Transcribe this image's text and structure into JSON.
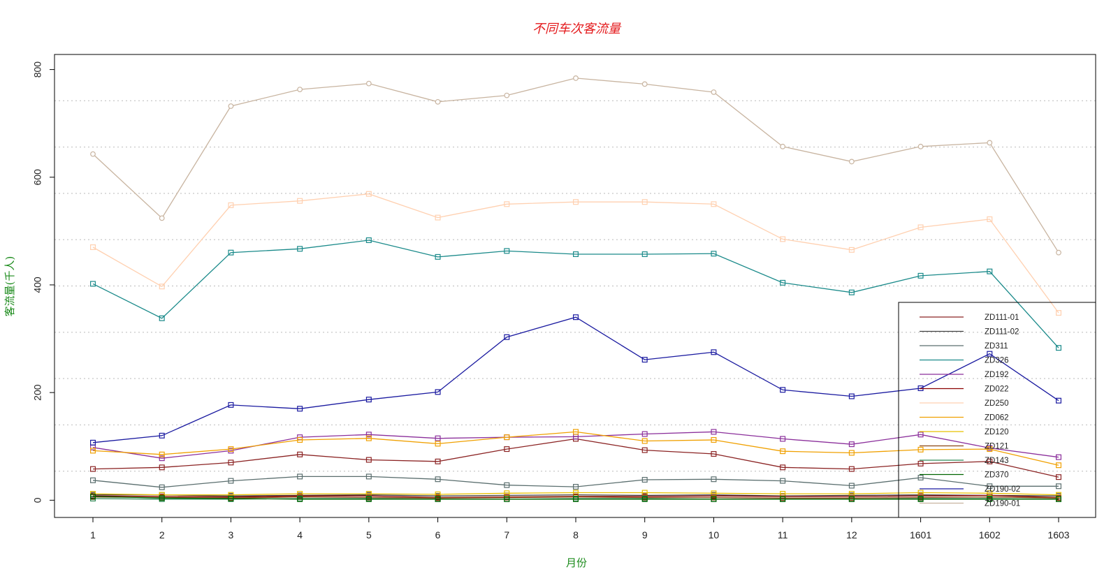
{
  "chart_data": {
    "type": "line",
    "title": "不同车次客流量",
    "xlabel": "月份",
    "ylabel": "客流量(千人)",
    "title_color": "#e41a1c",
    "axis_label_color": "#1a8a1a",
    "categories": [
      "1",
      "2",
      "3",
      "4",
      "5",
      "6",
      "7",
      "8",
      "9",
      "10",
      "11",
      "12",
      "1601",
      "1602",
      "1603"
    ],
    "y_ticks": [
      0,
      200,
      400,
      600,
      800
    ],
    "ylim": [
      -32,
      828
    ],
    "grid": "horizontal dotted",
    "legend_position": "bottom-right",
    "series": [
      {
        "name": "ZD111-01",
        "color": "#8b2323",
        "values": [
          58,
          61,
          70,
          85,
          75,
          72,
          95,
          114,
          93,
          86,
          61,
          58,
          68,
          72,
          43
        ]
      },
      {
        "name": "ZD111-02",
        "color": "#404040",
        "values": [
          10,
          10,
          8,
          9,
          10,
          8,
          9,
          10,
          9,
          10,
          8,
          9,
          10,
          9,
          8
        ]
      },
      {
        "name": "ZD311",
        "color": "#5a6e6e",
        "values": [
          37,
          24,
          36,
          44,
          44,
          39,
          28,
          25,
          38,
          39,
          36,
          27,
          42,
          26,
          26
        ]
      },
      {
        "name": "ZD326",
        "color": "#1a8a8a",
        "values": [
          402,
          338,
          460,
          467,
          483,
          452,
          463,
          457,
          457,
          458,
          404,
          386,
          417,
          425,
          283
        ]
      },
      {
        "name": "ZD192",
        "color": "#8b2f9b",
        "values": [
          98,
          78,
          92,
          117,
          122,
          115,
          117,
          118,
          123,
          127,
          114,
          104,
          122,
          97,
          80
        ]
      },
      {
        "name": "ZD022",
        "color": "#8b0000",
        "values": [
          8,
          7,
          6,
          8,
          8,
          5,
          6,
          7,
          7,
          8,
          7,
          7,
          8,
          9,
          5
        ]
      },
      {
        "name": "ZD250",
        "color": "#ffd0b0",
        "values": [
          470,
          397,
          548,
          556,
          569,
          525,
          550,
          554,
          554,
          550,
          485,
          465,
          507,
          522,
          348
        ]
      },
      {
        "name": "ZD062",
        "color": "#f0a000",
        "values": [
          92,
          85,
          95,
          112,
          115,
          105,
          117,
          127,
          110,
          112,
          91,
          88,
          94,
          95,
          65
        ]
      },
      {
        "name": "ZD120",
        "color": "#e8c000",
        "values": [
          12,
          10,
          10,
          12,
          12,
          11,
          13,
          14,
          14,
          13,
          12,
          12,
          14,
          13,
          10
        ]
      },
      {
        "name": "ZD121",
        "color": "#8b4513",
        "values": [
          6,
          5,
          4,
          6,
          5,
          4,
          5,
          6,
          5,
          5,
          4,
          4,
          5,
          6,
          4
        ]
      },
      {
        "name": "ZD143",
        "color": "#2e8b57",
        "values": [
          3,
          2,
          2,
          3,
          3,
          2,
          2,
          3,
          3,
          2,
          2,
          2,
          3,
          3,
          2
        ]
      },
      {
        "name": "ZD370",
        "color": "#006400",
        "values": [
          7,
          4,
          3,
          2,
          2,
          2,
          2,
          2,
          2,
          2,
          2,
          2,
          2,
          2,
          2
        ]
      },
      {
        "name": "ZD190-02",
        "color": "#1a1aa0",
        "values": [
          107,
          120,
          177,
          170,
          187,
          201,
          303,
          340,
          261,
          275,
          205,
          193,
          208,
          272,
          185
        ]
      },
      {
        "name": "ZD190-01",
        "color": "#c8b4a0",
        "values": [
          643,
          524,
          732,
          763,
          774,
          740,
          752,
          784,
          773,
          758,
          657,
          629,
          657,
          664,
          460
        ]
      }
    ]
  }
}
